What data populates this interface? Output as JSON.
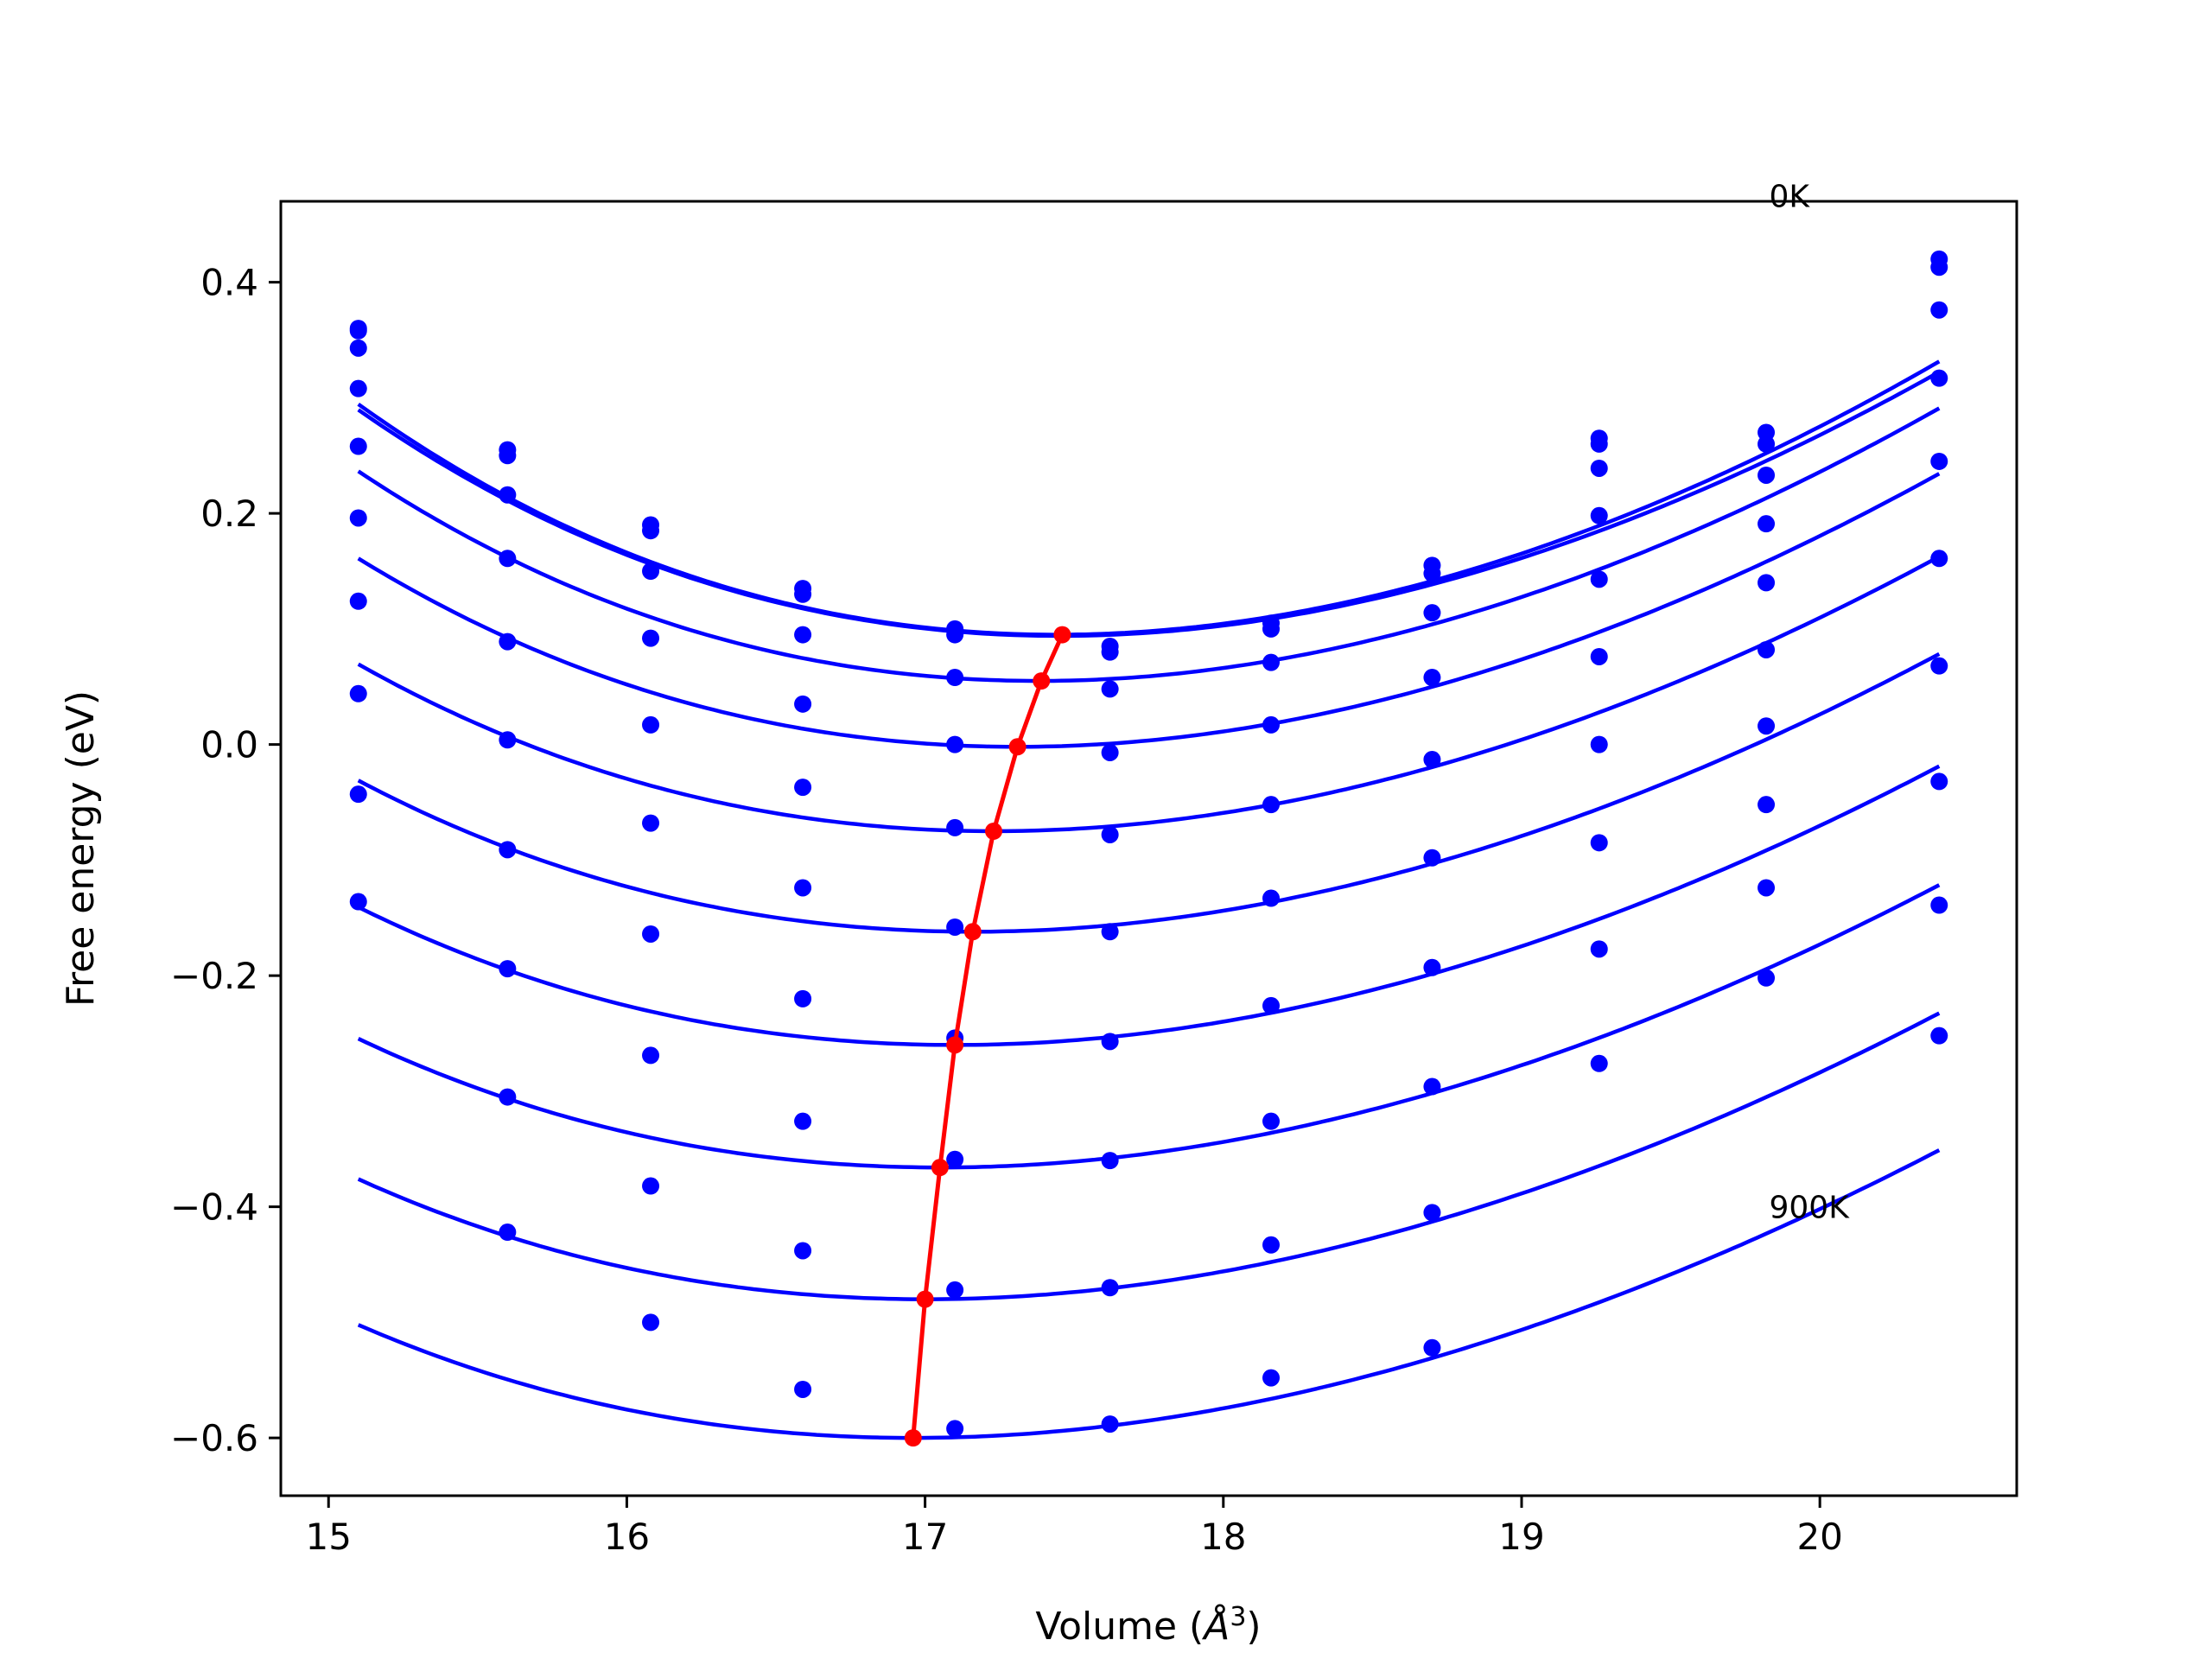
{
  "chart_data": {
    "type": "scatter",
    "xlabel_main": "Volume (",
    "xlabel_symbol": "Å",
    "xlabel_sup": "3",
    "xlabel_end": ")",
    "ylabel": "Free energy (eV)",
    "xlim": [
      14.84,
      20.66
    ],
    "ylim": [
      -0.65,
      0.47
    ],
    "xticks": [
      15,
      16,
      17,
      18,
      19,
      20
    ],
    "yticks": [
      -0.6,
      -0.4,
      -0.2,
      0.0,
      0.2,
      0.4
    ],
    "xtick_labels": [
      "15",
      "16",
      "17",
      "18",
      "19",
      "20"
    ],
    "ytick_labels": [
      "−0.6",
      "−0.4",
      "−0.2",
      "0.0",
      "0.2",
      "0.4"
    ],
    "annotations": [
      {
        "text": "0K",
        "x": 19.83,
        "y": 0.475
      },
      {
        "text": "900K",
        "x": 19.83,
        "y": -0.4
      }
    ],
    "colors": {
      "fit": "#0000ff",
      "points": "#0000ff",
      "minima": "#ff0000"
    },
    "volumes": [
      15.1,
      15.6,
      16.08,
      16.59,
      17.1,
      17.62,
      18.16,
      18.7,
      19.26,
      19.82,
      20.4
    ],
    "series": [
      {
        "fit": {
          "v0": 17.44,
          "e0": 0.095,
          "k": 0.072
        },
        "points": [
          0.36,
          0.255,
          0.19,
          0.135,
          0.1,
          0.085,
          0.105,
          0.155,
          0.265,
          0.27,
          0.42
        ]
      },
      {
        "fit": {
          "v0": 17.45,
          "e0": 0.094,
          "k": 0.07
        },
        "points": [
          0.358,
          0.25,
          0.185,
          0.13,
          0.095,
          0.08,
          0.1,
          0.148,
          0.26,
          0.26,
          0.413
        ]
      },
      {
        "fit": {
          "v0": 17.38,
          "e0": 0.055,
          "k": 0.069
        },
        "points": [
          0.343,
          0.216,
          0.15,
          0.095,
          0.058,
          0.048,
          0.071,
          0.114,
          0.239,
          0.233,
          0.376
        ]
      },
      {
        "fit": {
          "v0": 17.31,
          "e0": -0.002,
          "k": 0.066
        },
        "points": [
          0.308,
          0.161,
          0.092,
          0.035,
          0.0,
          -0.007,
          0.017,
          0.058,
          0.198,
          0.191,
          0.317
        ]
      },
      {
        "fit": {
          "v0": 17.23,
          "e0": -0.075,
          "k": 0.063
        },
        "points": [
          0.258,
          0.089,
          0.017,
          -0.037,
          -0.072,
          -0.078,
          -0.052,
          -0.013,
          0.143,
          0.14,
          0.245
        ]
      },
      {
        "fit": {
          "v0": 17.16,
          "e0": -0.162,
          "k": 0.061
        },
        "points": [
          0.196,
          0.004,
          -0.068,
          -0.124,
          -0.158,
          -0.162,
          -0.133,
          -0.098,
          0.076,
          0.082,
          0.161
        ]
      },
      {
        "fit": {
          "v0": 17.1,
          "e0": -0.26,
          "k": 0.059
        },
        "points": [
          0.124,
          -0.091,
          -0.164,
          -0.22,
          -0.254,
          -0.257,
          -0.226,
          -0.193,
          0.0,
          0.016,
          0.068
        ]
      },
      {
        "fit": {
          "v0": 17.05,
          "e0": -0.366,
          "k": 0.058
        },
        "points": [
          0.044,
          -0.194,
          -0.269,
          -0.326,
          -0.359,
          -0.36,
          -0.326,
          -0.296,
          -0.085,
          -0.052,
          -0.032
        ]
      },
      {
        "fit": {
          "v0": 17.0,
          "e0": -0.48,
          "k": 0.057
        },
        "points": [
          -0.043,
          -0.305,
          -0.382,
          -0.438,
          -0.472,
          -0.47,
          -0.433,
          -0.405,
          -0.177,
          -0.124,
          -0.139
        ]
      },
      {
        "fit": {
          "v0": 16.96,
          "e0": -0.6,
          "k": 0.056
        },
        "points": [
          -0.136,
          -0.422,
          -0.5,
          -0.558,
          -0.592,
          -0.588,
          -0.548,
          -0.522,
          -0.276,
          -0.202,
          -0.252
        ]
      }
    ],
    "minima": {
      "x": [
        17.46,
        17.39,
        17.31,
        17.23,
        17.16,
        17.1,
        17.05,
        17.0,
        16.96
      ],
      "y": [
        0.095,
        0.055,
        -0.002,
        -0.075,
        -0.162,
        -0.26,
        -0.366,
        -0.48,
        -0.6
      ]
    }
  }
}
